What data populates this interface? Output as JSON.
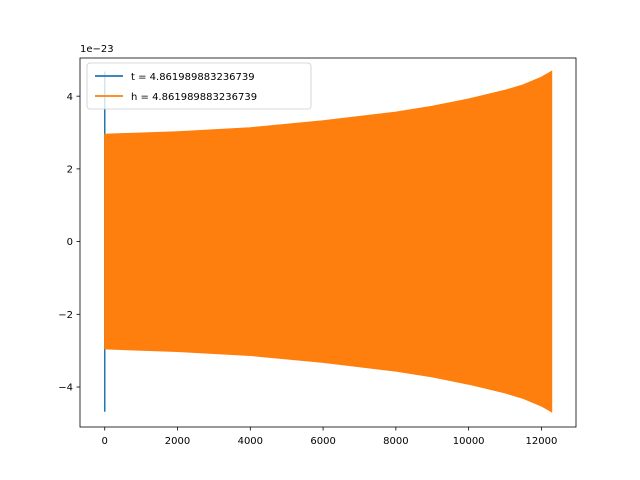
{
  "chart_data": {
    "type": "line",
    "title": "",
    "xlabel": "",
    "ylabel": "",
    "y_offset_label": "1e−23",
    "xlim": [
      -680,
      12950
    ],
    "ylim": [
      -5.1,
      5.05
    ],
    "x_ticks": [
      0,
      2000,
      4000,
      6000,
      8000,
      10000,
      12000
    ],
    "x_tick_labels": [
      "0",
      "2000",
      "4000",
      "6000",
      "8000",
      "10000",
      "12000"
    ],
    "y_ticks": [
      -4,
      -2,
      0,
      2,
      4
    ],
    "y_tick_labels": [
      "−4",
      "−2",
      "0",
      "2",
      "4"
    ],
    "grid": false,
    "legend_position": "top-left",
    "series": [
      {
        "name": "t = 4.861989883236739",
        "color": "#1f77b4",
        "note_shape": "narrow spike near x=0",
        "x": [
          0,
          0,
          0,
          0
        ],
        "y": [
          -4.68,
          4.68,
          -2.7,
          2.7
        ]
      },
      {
        "name": "h = 4.861989883236739",
        "color": "#ff7f0e",
        "envelope_x": [
          0,
          2000,
          4000,
          6000,
          8000,
          9000,
          10000,
          11000,
          11500,
          12000,
          12280
        ],
        "envelope_upper": [
          2.95,
          3.02,
          3.13,
          3.32,
          3.56,
          3.72,
          3.92,
          4.16,
          4.31,
          4.52,
          4.68
        ],
        "envelope_lower": [
          -2.95,
          -3.02,
          -3.13,
          -3.32,
          -3.56,
          -3.72,
          -3.92,
          -4.16,
          -4.31,
          -4.52,
          -4.68
        ]
      }
    ]
  }
}
